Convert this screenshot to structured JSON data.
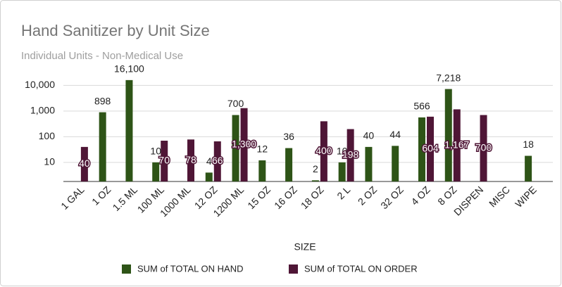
{
  "chart_data": {
    "type": "bar",
    "title": "Hand Sanitizer by Unit Size",
    "subtitle": "Individual Units - Non-Medical Use",
    "x_label": "SIZE",
    "categories": [
      "1 GAL",
      "1 OZ",
      "1.5 ML",
      "100 ML",
      "1000 ML",
      "12 OZ",
      "1200 ML",
      "15 OZ",
      "16 OZ",
      "18 OZ",
      "2 L",
      "2 OZ",
      "32 OZ",
      "4 OZ",
      "8 OZ",
      "DISPEN",
      "MISC",
      "WIPE"
    ],
    "series": [
      {
        "name": "SUM of TOTAL ON HAND",
        "color": "#2e5417",
        "values": [
          null,
          898,
          16100,
          10,
          null,
          4,
          700,
          12,
          36,
          2,
          10,
          40,
          44,
          566,
          7218,
          null,
          null,
          18
        ],
        "value_labels": [
          null,
          "898",
          "16,100",
          "10",
          null,
          "4",
          "700",
          "12",
          "36",
          "2",
          "10",
          "40",
          "44",
          "566",
          "7,218",
          null,
          null,
          "18"
        ]
      },
      {
        "name": "SUM of TOTAL ON ORDER",
        "color": "#4f1636",
        "values": [
          40,
          null,
          null,
          70,
          78,
          66,
          1300,
          null,
          null,
          400,
          198,
          null,
          null,
          604,
          1167,
          700,
          null,
          null
        ],
        "value_labels": [
          "40",
          null,
          null,
          "70",
          "78",
          "66",
          "1,300",
          null,
          null,
          "400",
          "198",
          null,
          null,
          "604",
          "1,167",
          "700",
          null,
          null
        ]
      }
    ],
    "log_scale": true,
    "ylim": [
      1.8,
      30000
    ],
    "yticks": [
      10,
      100,
      {
        "value": 1000,
        "label": "1,000"
      },
      {
        "value": 10000,
        "label": "10,000"
      }
    ],
    "grid": true,
    "legend": "bottom"
  }
}
